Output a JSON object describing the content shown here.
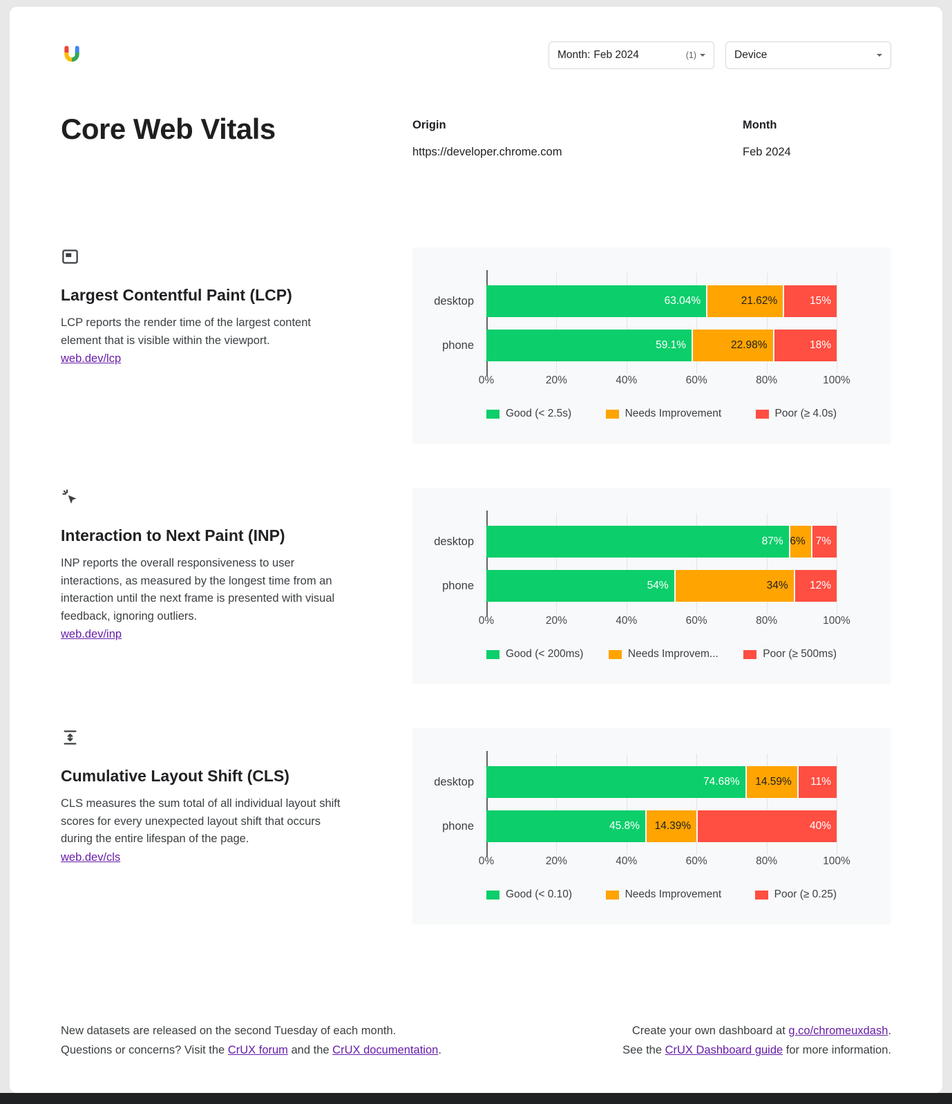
{
  "topbar": {
    "month_filter": {
      "label": "Month:",
      "value": "Feb 2024",
      "count": "(1)"
    },
    "device_filter": {
      "label": "Device"
    }
  },
  "header": {
    "title": "Core Web Vitals",
    "origin_label": "Origin",
    "origin_value": "https://developer.chrome.com",
    "month_label": "Month",
    "month_value": "Feb 2024"
  },
  "colors": {
    "good": "#0cce6b",
    "needs_improvement": "#ffa400",
    "poor": "#ff4e42",
    "label_on_good": "#ffffff",
    "label_on_needs_improvement": "#1f1f1f",
    "label_on_poor": "#ffffff",
    "link": "#681da8"
  },
  "sections": [
    {
      "id": "lcp",
      "icon": "lcp-icon",
      "title": "Largest Contentful Paint (LCP)",
      "description": "LCP reports the render time of the largest content element that is visible within the viewport.",
      "link": "web.dev/lcp",
      "chart_index": 0
    },
    {
      "id": "inp",
      "icon": "inp-icon",
      "title": "Interaction to Next Paint (INP)",
      "description": "INP reports the overall responsiveness to user interactions, as measured by the longest time from an interaction until the next frame is presented with visual feedback, ignoring outliers.",
      "link": "web.dev/inp",
      "chart_index": 1
    },
    {
      "id": "cls",
      "icon": "cls-icon",
      "title": "Cumulative Layout Shift (CLS)",
      "description": "CLS measures the sum total of all individual layout shift scores for every unexpected layout shift that occurs during the entire lifespan of the page.",
      "link": "web.dev/cls",
      "chart_index": 2
    }
  ],
  "chart_data": [
    {
      "type": "bar",
      "variant": "horizontal_stacked",
      "metric": "Largest Contentful Paint (LCP)",
      "categories": [
        "desktop",
        "phone"
      ],
      "series": [
        {
          "name": "Good (< 2.5s)",
          "color_key": "good",
          "values": [
            63.04,
            59.1
          ]
        },
        {
          "name": "Needs Improvement",
          "color_key": "needs_improvement",
          "values": [
            21.62,
            22.98
          ]
        },
        {
          "name": "Poor (≥ 4.0s)",
          "color_key": "poor",
          "values": [
            15,
            18
          ]
        }
      ],
      "value_suffix": "%",
      "xlim": [
        0,
        100
      ],
      "ticks": [
        "0%",
        "20%",
        "40%",
        "60%",
        "80%",
        "100%"
      ],
      "legend_position": "bottom",
      "grid": true
    },
    {
      "type": "bar",
      "variant": "horizontal_stacked",
      "metric": "Interaction to Next Paint (INP)",
      "categories": [
        "desktop",
        "phone"
      ],
      "series": [
        {
          "name": "Good (< 200ms)",
          "color_key": "good",
          "values": [
            87,
            54
          ]
        },
        {
          "name": "Needs Improvem...",
          "color_key": "needs_improvement",
          "values": [
            6,
            34
          ]
        },
        {
          "name": "Poor (≥ 500ms)",
          "color_key": "poor",
          "values": [
            7,
            12
          ]
        }
      ],
      "value_suffix": "%",
      "xlim": [
        0,
        100
      ],
      "ticks": [
        "0%",
        "20%",
        "40%",
        "60%",
        "80%",
        "100%"
      ],
      "legend_position": "bottom",
      "grid": true
    },
    {
      "type": "bar",
      "variant": "horizontal_stacked",
      "metric": "Cumulative Layout Shift (CLS)",
      "categories": [
        "desktop",
        "phone"
      ],
      "series": [
        {
          "name": "Good (< 0.10)",
          "color_key": "good",
          "values": [
            74.68,
            45.8
          ]
        },
        {
          "name": "Needs Improvement",
          "color_key": "needs_improvement",
          "values": [
            14.59,
            14.39
          ]
        },
        {
          "name": "Poor (≥ 0.25)",
          "color_key": "poor",
          "values": [
            11,
            40
          ]
        }
      ],
      "value_suffix": "%",
      "xlim": [
        0,
        100
      ],
      "ticks": [
        "0%",
        "20%",
        "40%",
        "60%",
        "80%",
        "100%"
      ],
      "legend_position": "bottom",
      "grid": true
    }
  ],
  "footer": {
    "left_line1": "New datasets are released on the second Tuesday of each month.",
    "left_line2_prefix": "Questions or concerns? Visit the ",
    "left_link_forum": "CrUX forum",
    "left_line2_mid": " and the ",
    "left_link_docs": "CrUX documentation",
    "left_line2_suffix": ".",
    "right_line1_prefix": "Create your own dashboard at ",
    "right_link_dash": "g.co/chromeuxdash",
    "right_line1_suffix": ".",
    "right_line2_prefix": "See the ",
    "right_link_guide": "CrUX Dashboard guide",
    "right_line2_suffix": " for more information."
  }
}
